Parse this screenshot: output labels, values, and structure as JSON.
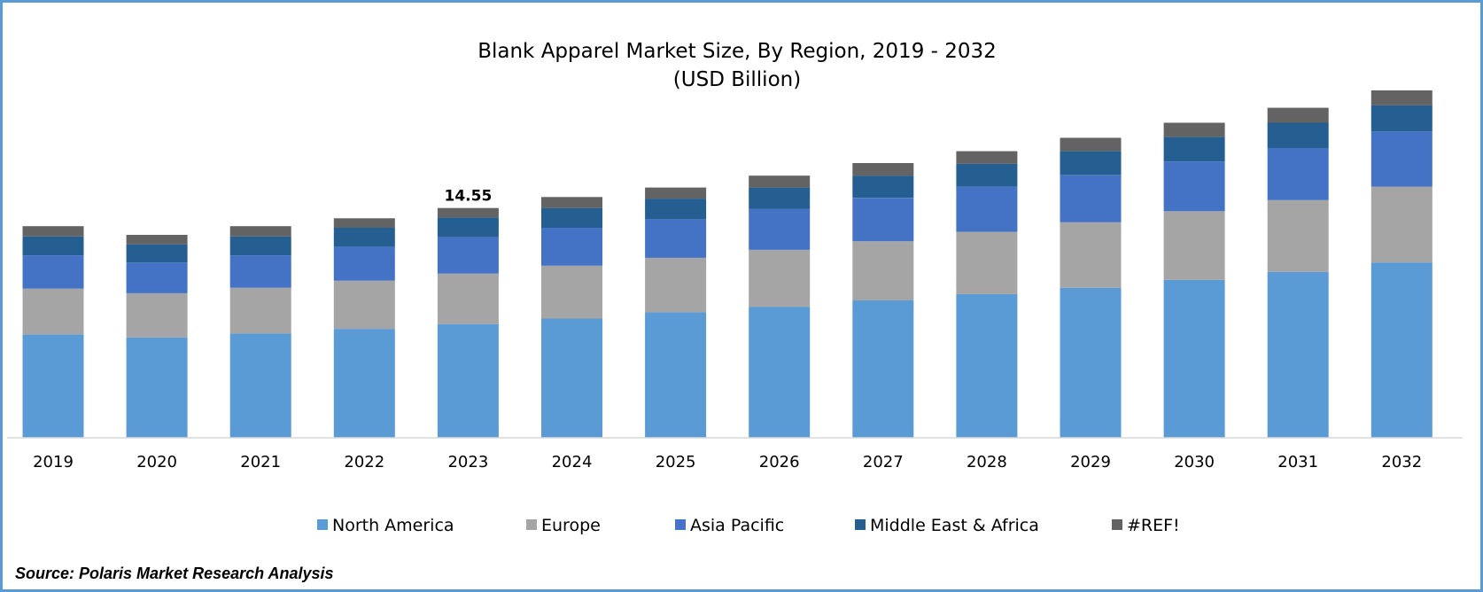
{
  "chart_data": {
    "type": "bar",
    "stacked": true,
    "title": "Blank Apparel Market Size, By Region, 2019 - 2032",
    "subtitle": "(USD Billion)",
    "categories": [
      "2019",
      "2020",
      "2021",
      "2022",
      "2023",
      "2024",
      "2025",
      "2026",
      "2027",
      "2028",
      "2029",
      "2030",
      "2031",
      "2032"
    ],
    "series": [
      {
        "name": "North America",
        "color": "#5b9bd5",
        "values": [
          6.55,
          6.35,
          6.6,
          6.9,
          7.2,
          7.55,
          7.95,
          8.3,
          8.7,
          9.1,
          9.5,
          10.0,
          10.5,
          11.1
        ]
      },
      {
        "name": "Europe",
        "color": "#a5a5a5",
        "values": [
          2.9,
          2.8,
          2.9,
          3.05,
          3.2,
          3.35,
          3.45,
          3.6,
          3.75,
          3.95,
          4.15,
          4.35,
          4.55,
          4.8
        ]
      },
      {
        "name": "Asia Pacific",
        "color": "#4472c4",
        "values": [
          2.1,
          1.95,
          2.05,
          2.15,
          2.3,
          2.4,
          2.45,
          2.6,
          2.75,
          2.85,
          3.0,
          3.15,
          3.3,
          3.5
        ]
      },
      {
        "name": "Middle East & Africa",
        "color": "#255e91",
        "values": [
          1.2,
          1.15,
          1.2,
          1.2,
          1.25,
          1.25,
          1.3,
          1.35,
          1.4,
          1.45,
          1.5,
          1.55,
          1.6,
          1.65
        ]
      },
      {
        "name": "#REF!",
        "color": "#636363",
        "values": [
          0.65,
          0.6,
          0.65,
          0.6,
          0.6,
          0.7,
          0.7,
          0.75,
          0.8,
          0.8,
          0.85,
          0.9,
          0.95,
          0.95
        ]
      }
    ],
    "data_labels": [
      {
        "category": "2023",
        "text": "14.55"
      }
    ],
    "ylim": [
      0,
      22
    ],
    "y_axis_visible": false,
    "grid": false,
    "legend_position": "bottom"
  },
  "source": "Source: Polaris Market Research Analysis"
}
